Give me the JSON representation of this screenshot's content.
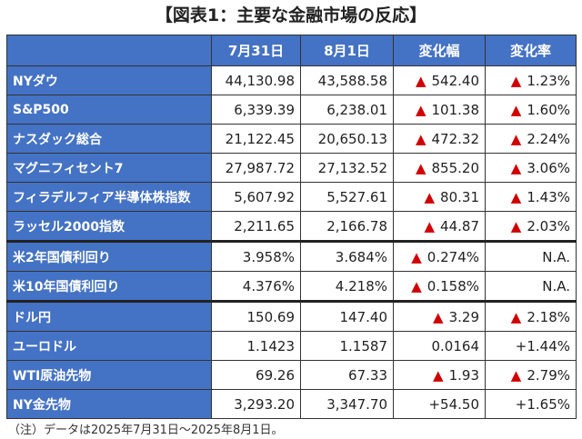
{
  "title": "【図表1：主要な金融市場の反応】",
  "table": {
    "header": [
      "7月31日",
      "8月1日",
      "変化幅",
      "変化率"
    ],
    "rows": [
      [
        "NYダウ",
        "44,130.98",
        "43,588.58",
        {
          "sign": "▲",
          "text": "542.40"
        },
        {
          "sign": "▲",
          "text": "1.23%"
        }
      ],
      [
        "S&P500",
        "6,339.39",
        "6,238.01",
        {
          "sign": "▲",
          "text": "101.38"
        },
        {
          "sign": "▲",
          "text": "1.60%"
        }
      ],
      [
        "ナスダック総合",
        "21,122.45",
        "20,650.13",
        {
          "sign": "▲",
          "text": "472.32"
        },
        {
          "sign": "▲",
          "text": "2.24%"
        }
      ],
      [
        "マグニフィセント7",
        "27,987.72",
        "27,132.52",
        {
          "sign": "▲",
          "text": "855.20"
        },
        {
          "sign": "▲",
          "text": "3.06%"
        }
      ],
      [
        "フィラデルフィア半導体株指数",
        "5,607.92",
        "5,527.61",
        {
          "sign": "▲",
          "text": "80.31"
        },
        {
          "sign": "▲",
          "text": "1.43%"
        }
      ],
      [
        "ラッセル2000指数",
        "2,211.65",
        "2,166.78",
        {
          "sign": "▲",
          "text": "44.87"
        },
        {
          "sign": "▲",
          "text": "2.03%"
        }
      ],
      [
        "米2年国債利回り",
        "3.958%",
        "3.684%",
        {
          "sign": "▲",
          "text": "0.274%"
        },
        "N.A."
      ],
      [
        "米10年国債利回り",
        "4.376%",
        "4.218%",
        {
          "sign": "▲",
          "text": "0.158%"
        },
        "N.A."
      ],
      [
        "ドル円",
        "150.69",
        "147.40",
        {
          "sign": "▲",
          "text": "3.29"
        },
        {
          "sign": "▲",
          "text": "2.18%"
        }
      ],
      [
        "ユーロドル",
        "1.1423",
        "1.1587",
        "0.0164",
        "+1.44%"
      ],
      [
        "WTI原油先物",
        "69.26",
        "67.33",
        {
          "sign": "▲",
          "text": "1.93"
        },
        {
          "sign": "▲",
          "text": "2.79%"
        }
      ],
      [
        "NY金先物",
        "3,293.20",
        "3,347.70",
        "+54.50",
        "+1.65%"
      ]
    ]
  },
  "note": "（注）データは2025年7月31日～2025年8月1日。"
}
